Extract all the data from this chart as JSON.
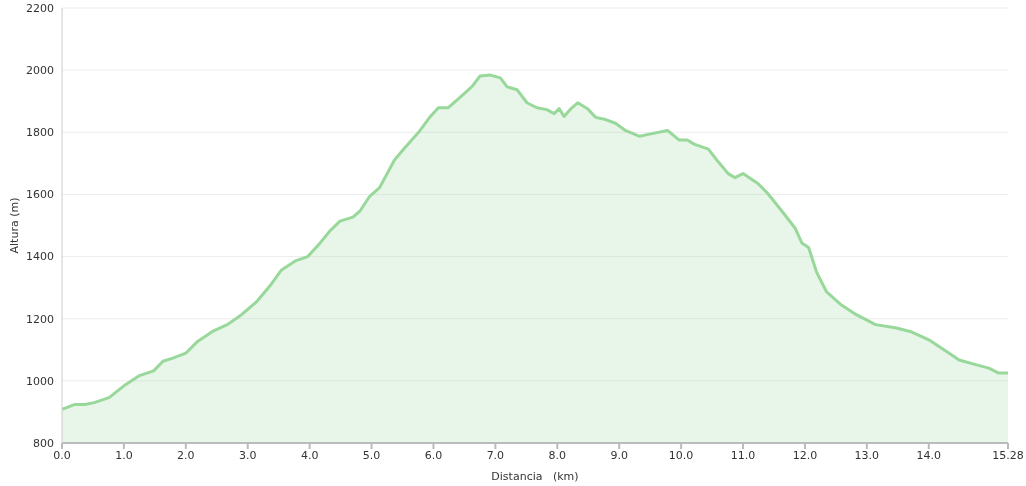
{
  "chart_data": {
    "type": "area",
    "xlabel": "Distancia   (km)",
    "ylabel": "Altura (m)",
    "x": [
      0,
      0.21,
      0.37,
      0.52,
      0.76,
      1.0,
      1.24,
      1.48,
      1.63,
      1.79,
      2.0,
      2.19,
      2.43,
      2.67,
      2.9,
      3.14,
      3.38,
      3.54,
      3.78,
      3.97,
      4.17,
      4.33,
      4.49,
      4.7,
      4.81,
      4.97,
      5.13,
      5.37,
      5.52,
      5.76,
      5.95,
      6.08,
      6.24,
      6.48,
      6.63,
      6.75,
      6.92,
      7.08,
      7.19,
      7.35,
      7.51,
      7.67,
      7.83,
      7.95,
      8.03,
      8.11,
      8.22,
      8.33,
      8.49,
      8.62,
      8.78,
      8.94,
      9.1,
      9.33,
      9.49,
      9.78,
      9.97,
      10.1,
      10.21,
      10.44,
      10.6,
      10.76,
      10.87,
      11.0,
      11.24,
      11.4,
      11.63,
      11.84,
      11.95,
      12.06,
      12.19,
      12.35,
      12.59,
      12.83,
      13.14,
      13.46,
      13.7,
      14.02,
      14.33,
      14.49,
      14.73,
      14.97,
      15.13,
      15.28
    ],
    "series": [
      {
        "color": "#98d89a",
        "values": [
          908,
          924,
          924,
          930,
          946,
          984,
          1016,
          1032,
          1063,
          1073,
          1089,
          1127,
          1159,
          1181,
          1213,
          1254,
          1311,
          1356,
          1387,
          1400,
          1444,
          1483,
          1514,
          1527,
          1546,
          1594,
          1622,
          1711,
          1746,
          1800,
          1851,
          1879,
          1879,
          1921,
          1949,
          1981,
          1984,
          1975,
          1946,
          1937,
          1895,
          1879,
          1873,
          1860,
          1876,
          1851,
          1876,
          1895,
          1876,
          1848,
          1841,
          1829,
          1806,
          1787,
          1794,
          1806,
          1775,
          1775,
          1762,
          1746,
          1705,
          1667,
          1654,
          1667,
          1635,
          1603,
          1546,
          1492,
          1444,
          1429,
          1349,
          1286,
          1244,
          1213,
          1181,
          1171,
          1159,
          1130,
          1089,
          1067,
          1054,
          1041,
          1025,
          1025
        ]
      }
    ],
    "xlim": [
      0,
      15.28
    ],
    "xticks": [
      {
        "value": 0,
        "label": "0.0"
      },
      {
        "value": 1,
        "label": "1.0"
      },
      {
        "value": 2,
        "label": "2.0"
      },
      {
        "value": 3,
        "label": "3.0"
      },
      {
        "value": 4,
        "label": "4.0"
      },
      {
        "value": 5,
        "label": "5.0"
      },
      {
        "value": 6,
        "label": "6.0"
      },
      {
        "value": 7,
        "label": "7.0"
      },
      {
        "value": 8,
        "label": "8.0"
      },
      {
        "value": 9,
        "label": "9.0"
      },
      {
        "value": 10,
        "label": "10.0"
      },
      {
        "value": 11,
        "label": "11.0"
      },
      {
        "value": 12,
        "label": "12.0"
      },
      {
        "value": 13,
        "label": "13.0"
      },
      {
        "value": 14,
        "label": "14.0"
      },
      15.28
    ],
    "ylim": [
      800,
      2200
    ],
    "yticks": [
      800,
      1000,
      1200,
      1400,
      1600,
      1800,
      2000,
      2200
    ],
    "grid": "y"
  }
}
